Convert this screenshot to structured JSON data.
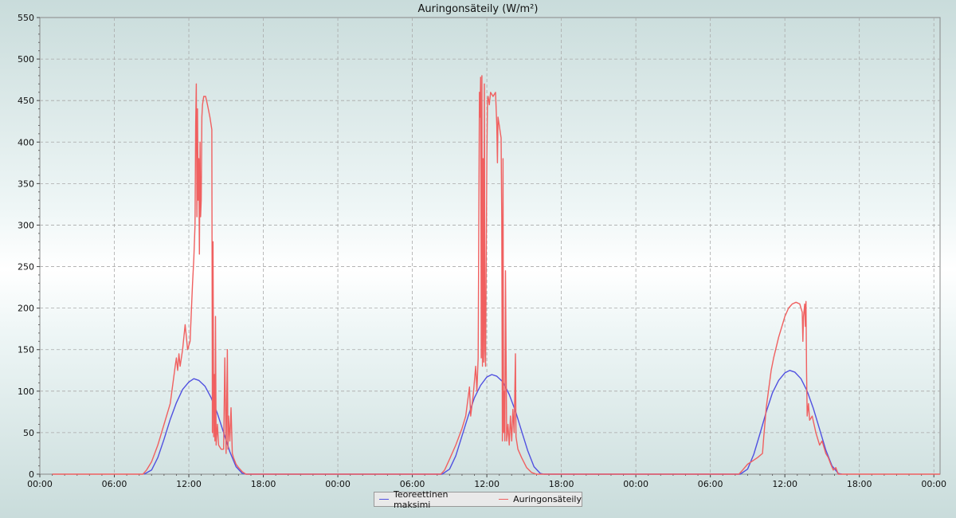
{
  "chart_data": {
    "type": "line",
    "title": "Auringonsäteily (W/m²)",
    "xlabel": "",
    "ylabel": "",
    "ylim": [
      0,
      550
    ],
    "y_ticks": [
      0,
      50,
      100,
      150,
      200,
      250,
      300,
      350,
      400,
      450,
      500,
      550
    ],
    "xlim_hours": [
      0,
      72.5
    ],
    "x_tick_labels": [
      "00:00",
      "06:00",
      "12:00",
      "18:00",
      "00:00",
      "06:00",
      "12:00",
      "18:00",
      "00:00",
      "06:00",
      "12:00",
      "18:00",
      "00:00"
    ],
    "grid": true,
    "legend_position": "bottom-center",
    "series": [
      {
        "name": "Teoreettinen maksimi",
        "color": "#5050e0",
        "points": [
          [
            8.4,
            0
          ],
          [
            9.0,
            5
          ],
          [
            9.5,
            20
          ],
          [
            10.0,
            42
          ],
          [
            10.5,
            66
          ],
          [
            11.0,
            86
          ],
          [
            11.5,
            102
          ],
          [
            12.0,
            111
          ],
          [
            12.4,
            115
          ],
          [
            12.8,
            113
          ],
          [
            13.3,
            106
          ],
          [
            13.8,
            92
          ],
          [
            14.3,
            73
          ],
          [
            14.8,
            50
          ],
          [
            15.3,
            27
          ],
          [
            15.8,
            9
          ],
          [
            16.3,
            1
          ],
          [
            16.6,
            0
          ],
          [
            32.4,
            0
          ],
          [
            33.0,
            6
          ],
          [
            33.5,
            22
          ],
          [
            34.0,
            46
          ],
          [
            34.5,
            70
          ],
          [
            35.0,
            92
          ],
          [
            35.5,
            107
          ],
          [
            36.0,
            117
          ],
          [
            36.4,
            120
          ],
          [
            36.8,
            118
          ],
          [
            37.3,
            111
          ],
          [
            37.8,
            96
          ],
          [
            38.3,
            76
          ],
          [
            38.8,
            52
          ],
          [
            39.3,
            28
          ],
          [
            39.8,
            9
          ],
          [
            40.3,
            1
          ],
          [
            40.6,
            0
          ],
          [
            56.4,
            0
          ],
          [
            57.0,
            6
          ],
          [
            57.5,
            24
          ],
          [
            58.0,
            49
          ],
          [
            58.5,
            75
          ],
          [
            59.0,
            98
          ],
          [
            59.5,
            113
          ],
          [
            60.0,
            122
          ],
          [
            60.4,
            125
          ],
          [
            60.8,
            123
          ],
          [
            61.3,
            115
          ],
          [
            61.8,
            100
          ],
          [
            62.3,
            79
          ],
          [
            62.8,
            54
          ],
          [
            63.3,
            29
          ],
          [
            63.8,
            10
          ],
          [
            64.3,
            1
          ],
          [
            64.6,
            0
          ]
        ]
      },
      {
        "name": "Auringonsäteily",
        "color": "#f06060",
        "points": [
          [
            1.0,
            0
          ],
          [
            8.3,
            0
          ],
          [
            8.6,
            5
          ],
          [
            9.0,
            15
          ],
          [
            9.5,
            35
          ],
          [
            10.0,
            60
          ],
          [
            10.5,
            85
          ],
          [
            10.9,
            130
          ],
          [
            11.0,
            140
          ],
          [
            11.1,
            125
          ],
          [
            11.2,
            145
          ],
          [
            11.3,
            130
          ],
          [
            11.5,
            150
          ],
          [
            11.7,
            180
          ],
          [
            11.9,
            150
          ],
          [
            12.1,
            160
          ],
          [
            12.3,
            230
          ],
          [
            12.4,
            260
          ],
          [
            12.5,
            300
          ],
          [
            12.55,
            420
          ],
          [
            12.6,
            470
          ],
          [
            12.65,
            310
          ],
          [
            12.7,
            440
          ],
          [
            12.75,
            330
          ],
          [
            12.8,
            380
          ],
          [
            12.85,
            265
          ],
          [
            12.9,
            400
          ],
          [
            12.95,
            310
          ],
          [
            13.0,
            330
          ],
          [
            13.05,
            430
          ],
          [
            13.1,
            445
          ],
          [
            13.2,
            455
          ],
          [
            13.35,
            455
          ],
          [
            13.5,
            445
          ],
          [
            13.7,
            430
          ],
          [
            13.85,
            415
          ],
          [
            13.9,
            50
          ],
          [
            13.95,
            280
          ],
          [
            14.0,
            45
          ],
          [
            14.05,
            120
          ],
          [
            14.1,
            40
          ],
          [
            14.15,
            190
          ],
          [
            14.2,
            35
          ],
          [
            14.3,
            60
          ],
          [
            14.4,
            35
          ],
          [
            14.6,
            30
          ],
          [
            14.8,
            30
          ],
          [
            14.9,
            140
          ],
          [
            15.0,
            25
          ],
          [
            15.1,
            150
          ],
          [
            15.15,
            30
          ],
          [
            15.2,
            70
          ],
          [
            15.3,
            40
          ],
          [
            15.4,
            80
          ],
          [
            15.5,
            25
          ],
          [
            15.6,
            20
          ],
          [
            15.8,
            12
          ],
          [
            16.0,
            8
          ],
          [
            16.3,
            3
          ],
          [
            16.6,
            0
          ],
          [
            32.3,
            0
          ],
          [
            32.6,
            5
          ],
          [
            33.0,
            18
          ],
          [
            33.5,
            35
          ],
          [
            34.0,
            55
          ],
          [
            34.3,
            70
          ],
          [
            34.6,
            105
          ],
          [
            34.7,
            70
          ],
          [
            34.9,
            95
          ],
          [
            35.1,
            130
          ],
          [
            35.2,
            100
          ],
          [
            35.3,
            140
          ],
          [
            35.4,
            460
          ],
          [
            35.45,
            430
          ],
          [
            35.5,
            478
          ],
          [
            35.55,
            140
          ],
          [
            35.6,
            480
          ],
          [
            35.65,
            130
          ],
          [
            35.7,
            380
          ],
          [
            35.75,
            135
          ],
          [
            35.8,
            470
          ],
          [
            35.85,
            150
          ],
          [
            35.9,
            130
          ],
          [
            36.0,
            380
          ],
          [
            36.05,
            450
          ],
          [
            36.1,
            455
          ],
          [
            36.2,
            445
          ],
          [
            36.3,
            460
          ],
          [
            36.5,
            455
          ],
          [
            36.7,
            460
          ],
          [
            36.8,
            420
          ],
          [
            36.85,
            375
          ],
          [
            36.9,
            430
          ],
          [
            37.0,
            420
          ],
          [
            37.15,
            405
          ],
          [
            37.2,
            310
          ],
          [
            37.25,
            40
          ],
          [
            37.3,
            380
          ],
          [
            37.35,
            50
          ],
          [
            37.4,
            100
          ],
          [
            37.45,
            40
          ],
          [
            37.5,
            245
          ],
          [
            37.6,
            40
          ],
          [
            37.7,
            60
          ],
          [
            37.8,
            35
          ],
          [
            37.9,
            70
          ],
          [
            38.0,
            40
          ],
          [
            38.1,
            78
          ],
          [
            38.2,
            50
          ],
          [
            38.3,
            145
          ],
          [
            38.35,
            45
          ],
          [
            38.5,
            30
          ],
          [
            38.8,
            20
          ],
          [
            39.2,
            8
          ],
          [
            39.6,
            2
          ],
          [
            40.0,
            0
          ],
          [
            56.3,
            0
          ],
          [
            56.6,
            5
          ],
          [
            57.0,
            12
          ],
          [
            57.5,
            17
          ],
          [
            57.8,
            20
          ],
          [
            58.2,
            25
          ],
          [
            58.3,
            45
          ],
          [
            58.5,
            80
          ],
          [
            58.9,
            125
          ],
          [
            59.1,
            140
          ],
          [
            59.5,
            165
          ],
          [
            59.8,
            180
          ],
          [
            60.0,
            190
          ],
          [
            60.3,
            200
          ],
          [
            60.6,
            205
          ],
          [
            60.9,
            207
          ],
          [
            61.2,
            205
          ],
          [
            61.4,
            195
          ],
          [
            61.45,
            160
          ],
          [
            61.5,
            190
          ],
          [
            61.6,
            205
          ],
          [
            61.65,
            178
          ],
          [
            61.7,
            208
          ],
          [
            61.75,
            125
          ],
          [
            61.8,
            70
          ],
          [
            61.9,
            85
          ],
          [
            62.0,
            65
          ],
          [
            62.2,
            70
          ],
          [
            62.5,
            50
          ],
          [
            62.8,
            35
          ],
          [
            63.0,
            40
          ],
          [
            63.3,
            25
          ],
          [
            63.5,
            20
          ],
          [
            63.7,
            12
          ],
          [
            63.9,
            5
          ],
          [
            64.1,
            8
          ],
          [
            64.3,
            0
          ],
          [
            72.5,
            0
          ]
        ]
      }
    ]
  }
}
